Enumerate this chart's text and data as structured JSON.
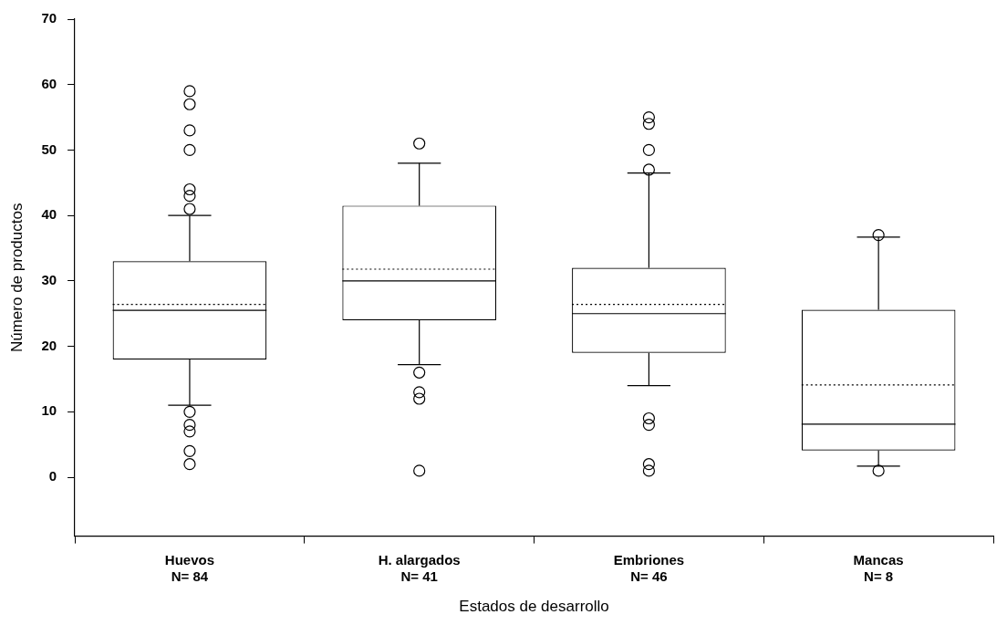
{
  "chart_data": {
    "type": "box",
    "xlabel": "Estados de desarrollo",
    "ylabel": "Número de productos",
    "categories": [
      "Huevos\nN= 84",
      "H. alargados\nN= 41",
      "Embriones\nN= 46",
      "Mancas\nN= 8"
    ],
    "boxes": [
      {
        "low": 11,
        "q1": 18,
        "median": 25.5,
        "q3": 33,
        "high": 40,
        "mean": 26.4,
        "outliers": [
          59,
          57,
          53,
          50,
          44,
          43,
          41,
          10,
          8,
          7,
          4,
          2
        ]
      },
      {
        "low": 17.2,
        "q1": 24,
        "median": 30,
        "q3": 41.5,
        "high": 48,
        "mean": 31.8,
        "outliers": [
          51,
          16,
          13,
          12,
          1
        ]
      },
      {
        "low": 14,
        "q1": 19,
        "median": 25,
        "q3": 32,
        "high": 46.5,
        "mean": 26.4,
        "outliers": [
          55,
          54,
          50,
          47,
          9,
          8,
          2,
          1
        ]
      },
      {
        "low": 1.7,
        "q1": 4.1,
        "median": 8.1,
        "q3": 25.6,
        "high": 36.7,
        "mean": 14.1,
        "outliers": [
          37,
          1
        ]
      }
    ],
    "color": "#000000",
    "ylim": [
      -9,
      70
    ],
    "yticks": [
      0,
      10,
      20,
      30,
      40,
      50,
      60,
      70
    ],
    "grid": false,
    "legend": false
  }
}
